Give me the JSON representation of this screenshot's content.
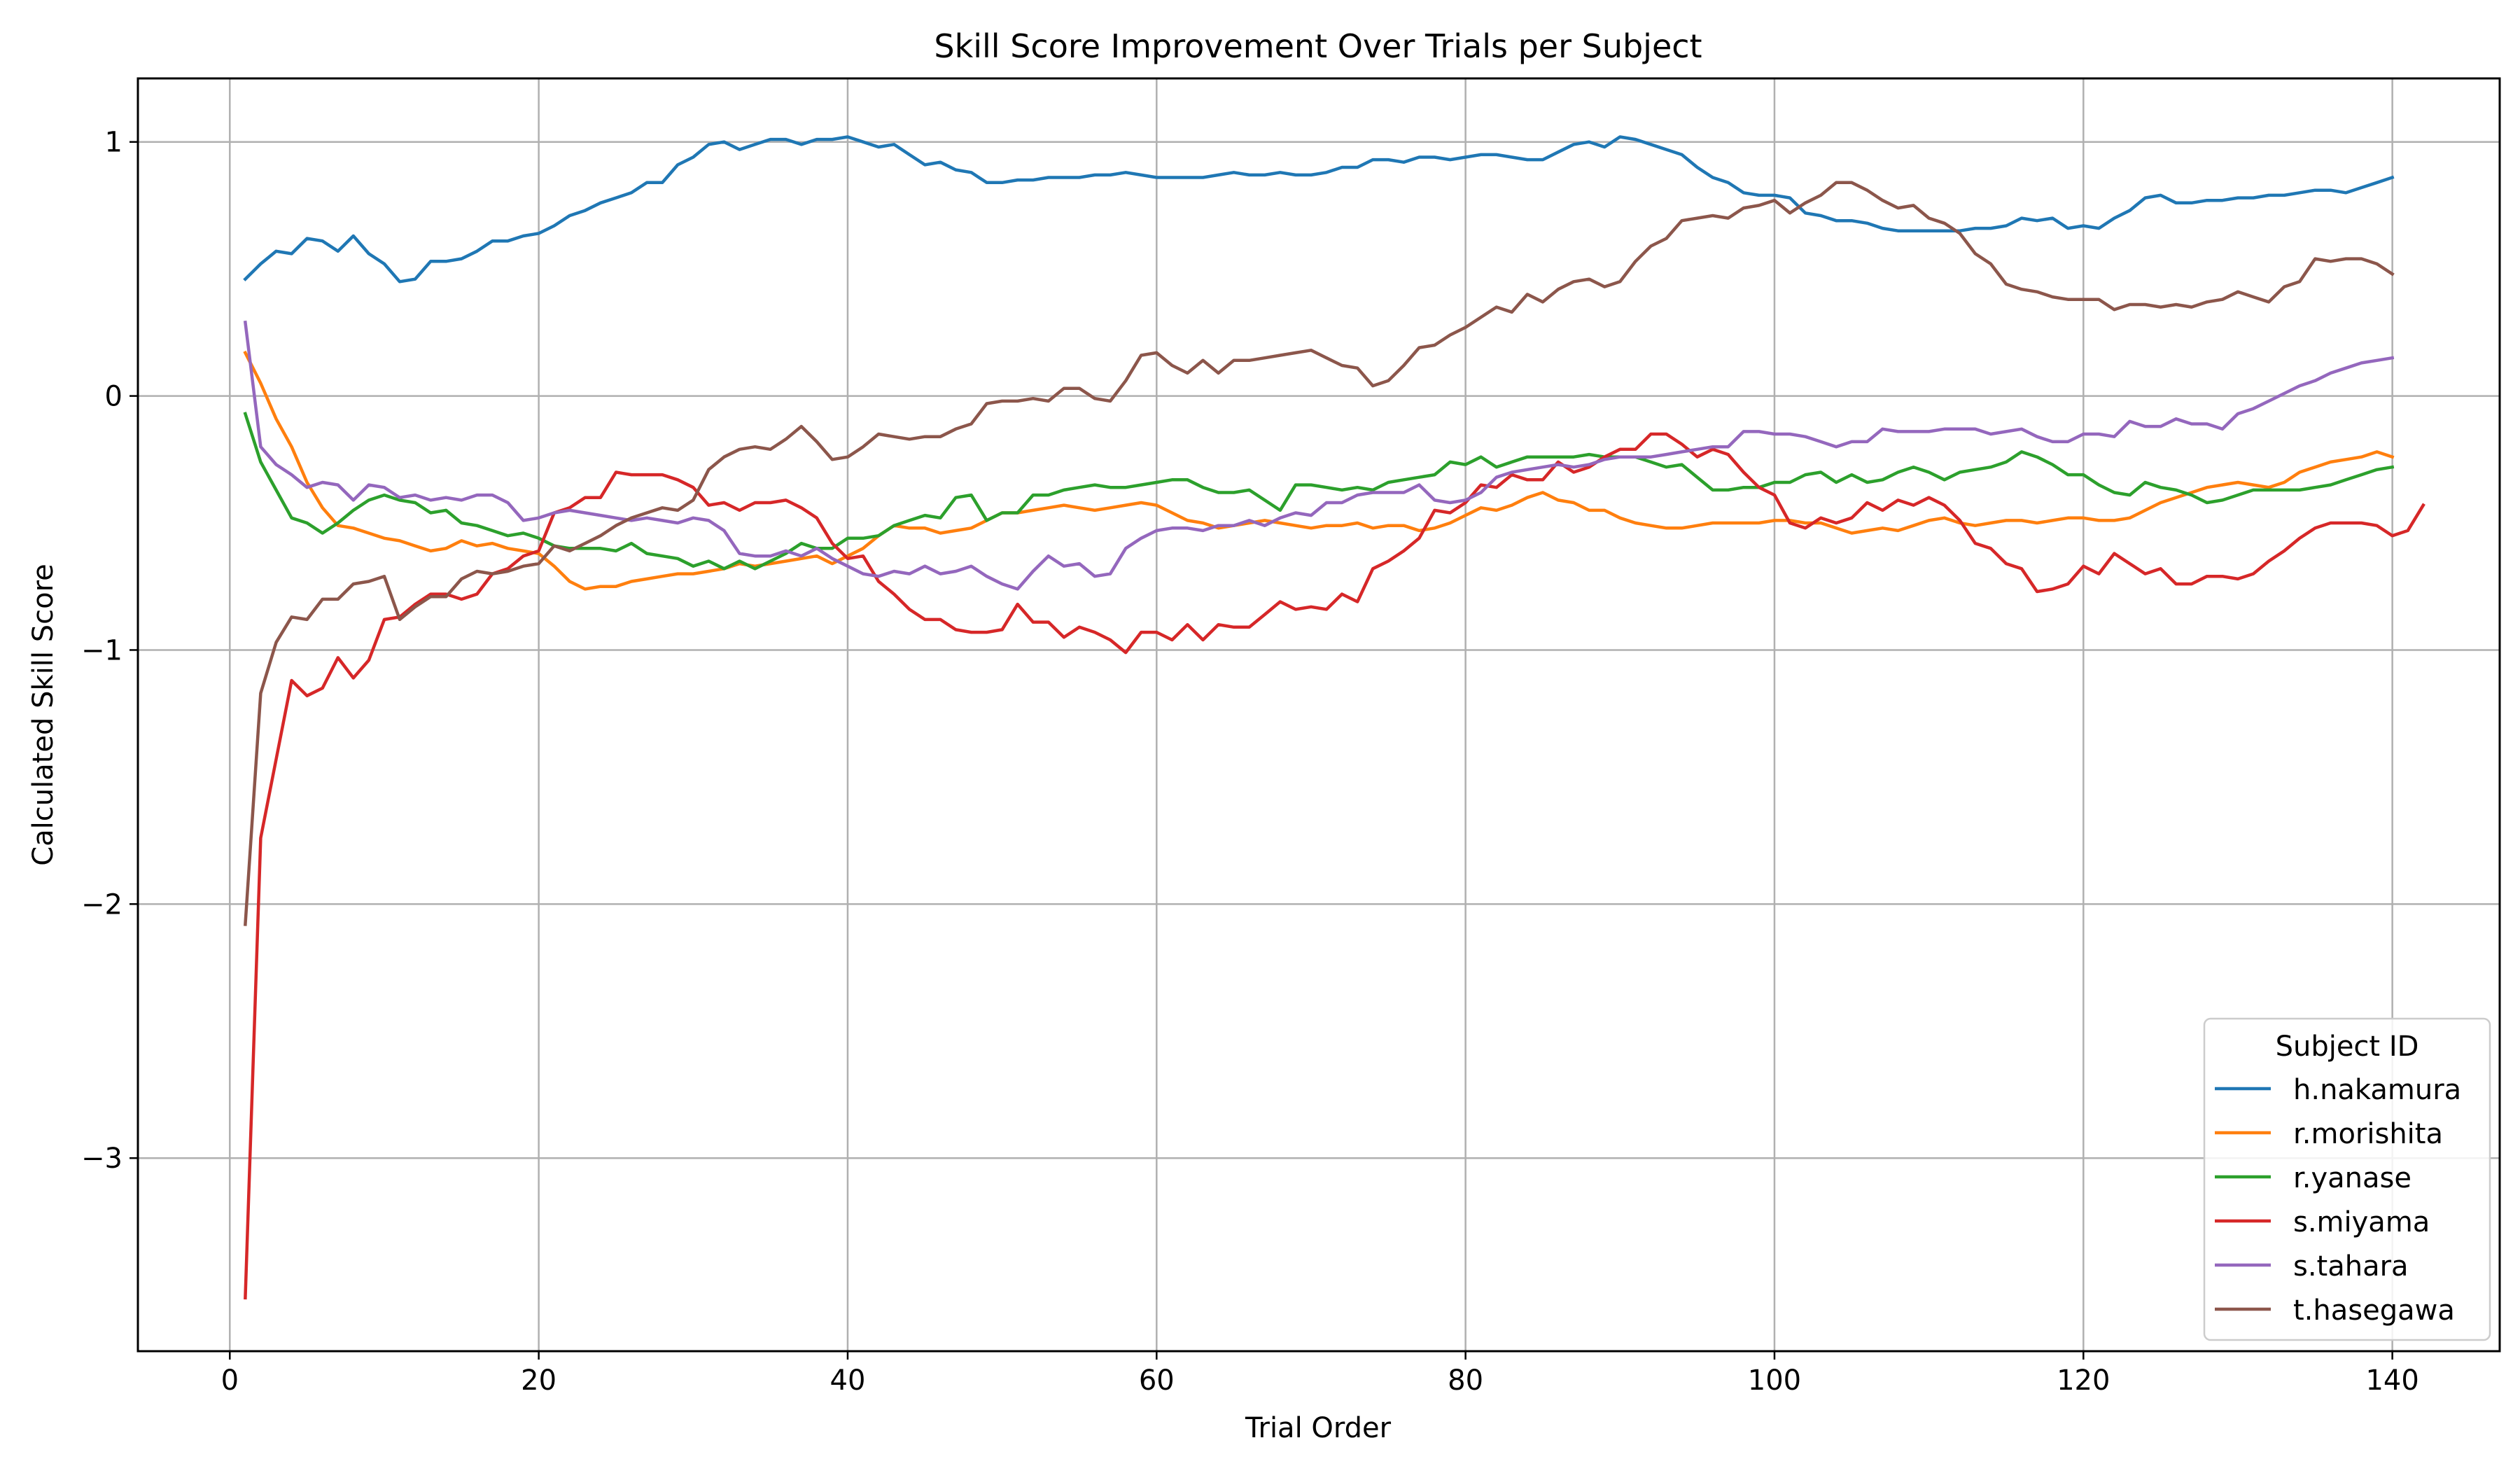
{
  "chart_data": {
    "type": "line",
    "title": "Skill Score Improvement Over Trials per Subject",
    "xlabel": "Trial Order",
    "ylabel": "Calculated Skill Score",
    "xlim": [
      -5.95,
      146.95
    ],
    "ylim": [
      -3.76,
      1.25
    ],
    "x_ticks": [
      0,
      20,
      40,
      60,
      80,
      100,
      120,
      140
    ],
    "y_ticks": [
      1,
      0,
      -1,
      -2,
      -3
    ],
    "y_tick_labels": [
      "1",
      "0",
      "−1",
      "−2",
      "−3"
    ],
    "grid": true,
    "legend": {
      "title": "Subject ID",
      "placement": "lower-right"
    },
    "x_start": 1,
    "series": [
      {
        "name": "h.nakamura",
        "color": "#1f77b4",
        "values": [
          0.46,
          0.52,
          0.57,
          0.56,
          0.62,
          0.61,
          0.57,
          0.63,
          0.56,
          0.52,
          0.45,
          0.46,
          0.53,
          0.53,
          0.54,
          0.57,
          0.61,
          0.61,
          0.63,
          0.64,
          0.67,
          0.71,
          0.73,
          0.76,
          0.78,
          0.8,
          0.84,
          0.84,
          0.91,
          0.94,
          0.99,
          1.0,
          0.97,
          0.99,
          1.01,
          1.01,
          0.99,
          1.01,
          1.01,
          1.02,
          1.0,
          0.98,
          0.99,
          0.95,
          0.91,
          0.92,
          0.89,
          0.88,
          0.84,
          0.84,
          0.85,
          0.85,
          0.86,
          0.86,
          0.86,
          0.87,
          0.87,
          0.88,
          0.87,
          0.86,
          0.86,
          0.86,
          0.86,
          0.87,
          0.88,
          0.87,
          0.87,
          0.88,
          0.87,
          0.87,
          0.88,
          0.9,
          0.9,
          0.93,
          0.93,
          0.92,
          0.94,
          0.94,
          0.93,
          0.94,
          0.95,
          0.95,
          0.94,
          0.93,
          0.93,
          0.96,
          0.99,
          1.0,
          0.98,
          1.02,
          1.01,
          0.99,
          0.97,
          0.95,
          0.9,
          0.86,
          0.84,
          0.8,
          0.79,
          0.79,
          0.78,
          0.72,
          0.71,
          0.69,
          0.69,
          0.68,
          0.66,
          0.65,
          0.65,
          0.65,
          0.65,
          0.65,
          0.66,
          0.66,
          0.67,
          0.7,
          0.69,
          0.7,
          0.66,
          0.67,
          0.66,
          0.7,
          0.73,
          0.78,
          0.79,
          0.76,
          0.76,
          0.77,
          0.77,
          0.78,
          0.78,
          0.79,
          0.79,
          0.8,
          0.81,
          0.81,
          0.8,
          0.82,
          0.84,
          0.86
        ]
      },
      {
        "name": "r.morishita",
        "color": "#ff7f0e",
        "values": [
          0.17,
          0.05,
          -0.09,
          -0.2,
          -0.34,
          -0.44,
          -0.51,
          -0.52,
          -0.54,
          -0.56,
          -0.57,
          -0.59,
          -0.61,
          -0.6,
          -0.57,
          -0.59,
          -0.58,
          -0.6,
          -0.61,
          -0.62,
          -0.67,
          -0.73,
          -0.76,
          -0.75,
          -0.75,
          -0.73,
          -0.72,
          -0.71,
          -0.7,
          -0.7,
          -0.69,
          -0.68,
          -0.66,
          -0.67,
          -0.66,
          -0.65,
          -0.64,
          -0.63,
          -0.66,
          -0.63,
          -0.6,
          -0.55,
          -0.51,
          -0.52,
          -0.52,
          -0.54,
          -0.53,
          -0.52,
          -0.49,
          -0.46,
          -0.46,
          -0.45,
          -0.44,
          -0.43,
          -0.44,
          -0.45,
          -0.44,
          -0.43,
          -0.42,
          -0.43,
          -0.46,
          -0.49,
          -0.5,
          -0.52,
          -0.51,
          -0.5,
          -0.49,
          -0.5,
          -0.51,
          -0.52,
          -0.51,
          -0.51,
          -0.5,
          -0.52,
          -0.51,
          -0.51,
          -0.53,
          -0.52,
          -0.5,
          -0.47,
          -0.44,
          -0.45,
          -0.43,
          -0.4,
          -0.38,
          -0.41,
          -0.42,
          -0.45,
          -0.45,
          -0.48,
          -0.5,
          -0.51,
          -0.52,
          -0.52,
          -0.51,
          -0.5,
          -0.5,
          -0.5,
          -0.5,
          -0.49,
          -0.49,
          -0.5,
          -0.5,
          -0.52,
          -0.54,
          -0.53,
          -0.52,
          -0.53,
          -0.51,
          -0.49,
          -0.48,
          -0.5,
          -0.51,
          -0.5,
          -0.49,
          -0.49,
          -0.5,
          -0.49,
          -0.48,
          -0.48,
          -0.49,
          -0.49,
          -0.48,
          -0.45,
          -0.42,
          -0.4,
          -0.38,
          -0.36,
          -0.35,
          -0.34,
          -0.35,
          -0.36,
          -0.34,
          -0.3,
          -0.28,
          -0.26,
          -0.25,
          -0.24,
          -0.22,
          -0.24
        ]
      },
      {
        "name": "r.yanase",
        "color": "#2ca02c",
        "values": [
          -0.07,
          -0.26,
          -0.37,
          -0.48,
          -0.5,
          -0.54,
          -0.5,
          -0.45,
          -0.41,
          -0.39,
          -0.41,
          -0.42,
          -0.46,
          -0.45,
          -0.5,
          -0.51,
          -0.53,
          -0.55,
          -0.54,
          -0.56,
          -0.59,
          -0.6,
          -0.6,
          -0.6,
          -0.61,
          -0.58,
          -0.62,
          -0.63,
          -0.64,
          -0.67,
          -0.65,
          -0.68,
          -0.65,
          -0.68,
          -0.65,
          -0.62,
          -0.58,
          -0.6,
          -0.6,
          -0.56,
          -0.56,
          -0.55,
          -0.51,
          -0.49,
          -0.47,
          -0.48,
          -0.4,
          -0.39,
          -0.49,
          -0.46,
          -0.46,
          -0.39,
          -0.39,
          -0.37,
          -0.36,
          -0.35,
          -0.36,
          -0.36,
          -0.35,
          -0.34,
          -0.33,
          -0.33,
          -0.36,
          -0.38,
          -0.38,
          -0.37,
          -0.41,
          -0.45,
          -0.35,
          -0.35,
          -0.36,
          -0.37,
          -0.36,
          -0.37,
          -0.34,
          -0.33,
          -0.32,
          -0.31,
          -0.26,
          -0.27,
          -0.24,
          -0.28,
          -0.26,
          -0.24,
          -0.24,
          -0.24,
          -0.24,
          -0.23,
          -0.24,
          -0.24,
          -0.24,
          -0.26,
          -0.28,
          -0.27,
          -0.32,
          -0.37,
          -0.37,
          -0.36,
          -0.36,
          -0.34,
          -0.34,
          -0.31,
          -0.3,
          -0.34,
          -0.31,
          -0.34,
          -0.33,
          -0.3,
          -0.28,
          -0.3,
          -0.33,
          -0.3,
          -0.29,
          -0.28,
          -0.26,
          -0.22,
          -0.24,
          -0.27,
          -0.31,
          -0.31,
          -0.35,
          -0.38,
          -0.39,
          -0.34,
          -0.36,
          -0.37,
          -0.39,
          -0.42,
          -0.41,
          -0.39,
          -0.37,
          -0.37,
          -0.37,
          -0.37,
          -0.36,
          -0.35,
          -0.33,
          -0.31,
          -0.29,
          -0.28
        ]
      },
      {
        "name": "s.miyama",
        "color": "#d62728",
        "values": [
          -3.55,
          -1.74,
          -1.43,
          -1.12,
          -1.18,
          -1.15,
          -1.03,
          -1.11,
          -1.04,
          -0.88,
          -0.87,
          -0.82,
          -0.78,
          -0.78,
          -0.8,
          -0.78,
          -0.7,
          -0.68,
          -0.63,
          -0.61,
          -0.46,
          -0.44,
          -0.4,
          -0.4,
          -0.3,
          -0.31,
          -0.31,
          -0.31,
          -0.33,
          -0.36,
          -0.43,
          -0.42,
          -0.45,
          -0.42,
          -0.42,
          -0.41,
          -0.44,
          -0.48,
          -0.58,
          -0.64,
          -0.63,
          -0.73,
          -0.78,
          -0.84,
          -0.88,
          -0.88,
          -0.92,
          -0.93,
          -0.93,
          -0.92,
          -0.82,
          -0.89,
          -0.89,
          -0.95,
          -0.91,
          -0.93,
          -0.96,
          -1.01,
          -0.93,
          -0.93,
          -0.96,
          -0.9,
          -0.96,
          -0.9,
          -0.91,
          -0.91,
          -0.86,
          -0.81,
          -0.84,
          -0.83,
          -0.84,
          -0.78,
          -0.81,
          -0.68,
          -0.65,
          -0.61,
          -0.56,
          -0.45,
          -0.46,
          -0.42,
          -0.35,
          -0.36,
          -0.31,
          -0.33,
          -0.33,
          -0.26,
          -0.3,
          -0.28,
          -0.24,
          -0.21,
          -0.21,
          -0.15,
          -0.15,
          -0.19,
          -0.24,
          -0.21,
          -0.23,
          -0.3,
          -0.36,
          -0.39,
          -0.5,
          -0.52,
          -0.48,
          -0.5,
          -0.48,
          -0.42,
          -0.45,
          -0.41,
          -0.43,
          -0.4,
          -0.43,
          -0.49,
          -0.58,
          -0.6,
          -0.66,
          -0.68,
          -0.77,
          -0.76,
          -0.74,
          -0.67,
          -0.7,
          -0.62,
          -0.66,
          -0.7,
          -0.68,
          -0.74,
          -0.74,
          -0.71,
          -0.71,
          -0.72,
          -0.7,
          -0.65,
          -0.61,
          -0.56,
          -0.52,
          -0.5,
          -0.5,
          -0.5,
          -0.51,
          -0.55,
          -0.53,
          -0.43
        ]
      },
      {
        "name": "s.tahara",
        "color": "#9467bd",
        "values": [
          0.29,
          -0.2,
          -0.27,
          -0.31,
          -0.36,
          -0.34,
          -0.35,
          -0.41,
          -0.35,
          -0.36,
          -0.4,
          -0.39,
          -0.41,
          -0.4,
          -0.41,
          -0.39,
          -0.39,
          -0.42,
          -0.49,
          -0.48,
          -0.46,
          -0.45,
          -0.46,
          -0.47,
          -0.48,
          -0.49,
          -0.48,
          -0.49,
          -0.5,
          -0.48,
          -0.49,
          -0.53,
          -0.62,
          -0.63,
          -0.63,
          -0.61,
          -0.63,
          -0.6,
          -0.64,
          -0.67,
          -0.7,
          -0.71,
          -0.69,
          -0.7,
          -0.67,
          -0.7,
          -0.69,
          -0.67,
          -0.71,
          -0.74,
          -0.76,
          -0.69,
          -0.63,
          -0.67,
          -0.66,
          -0.71,
          -0.7,
          -0.6,
          -0.56,
          -0.53,
          -0.52,
          -0.52,
          -0.53,
          -0.51,
          -0.51,
          -0.49,
          -0.51,
          -0.48,
          -0.46,
          -0.47,
          -0.42,
          -0.42,
          -0.39,
          -0.38,
          -0.38,
          -0.38,
          -0.35,
          -0.41,
          -0.42,
          -0.41,
          -0.38,
          -0.32,
          -0.3,
          -0.29,
          -0.28,
          -0.27,
          -0.28,
          -0.27,
          -0.25,
          -0.24,
          -0.24,
          -0.24,
          -0.23,
          -0.22,
          -0.21,
          -0.2,
          -0.2,
          -0.14,
          -0.14,
          -0.15,
          -0.15,
          -0.16,
          -0.18,
          -0.2,
          -0.18,
          -0.18,
          -0.13,
          -0.14,
          -0.14,
          -0.14,
          -0.13,
          -0.13,
          -0.13,
          -0.15,
          -0.14,
          -0.13,
          -0.16,
          -0.18,
          -0.18,
          -0.15,
          -0.15,
          -0.16,
          -0.1,
          -0.12,
          -0.12,
          -0.09,
          -0.11,
          -0.11,
          -0.13,
          -0.07,
          -0.05,
          -0.02,
          0.01,
          0.04,
          0.06,
          0.09,
          0.11,
          0.13,
          0.14,
          0.15
        ]
      },
      {
        "name": "t.hasegawa",
        "color": "#8c564b",
        "values": [
          -2.08,
          -1.17,
          -0.97,
          -0.87,
          -0.88,
          -0.8,
          -0.8,
          -0.74,
          -0.73,
          -0.71,
          -0.88,
          -0.83,
          -0.79,
          -0.79,
          -0.72,
          -0.69,
          -0.7,
          -0.69,
          -0.67,
          -0.66,
          -0.59,
          -0.61,
          -0.58,
          -0.55,
          -0.51,
          -0.48,
          -0.46,
          -0.44,
          -0.45,
          -0.41,
          -0.29,
          -0.24,
          -0.21,
          -0.2,
          -0.21,
          -0.17,
          -0.12,
          -0.18,
          -0.25,
          -0.24,
          -0.2,
          -0.15,
          -0.16,
          -0.17,
          -0.16,
          -0.16,
          -0.13,
          -0.11,
          -0.03,
          -0.02,
          -0.02,
          -0.01,
          -0.02,
          0.03,
          0.03,
          -0.01,
          -0.02,
          0.06,
          0.16,
          0.17,
          0.12,
          0.09,
          0.14,
          0.09,
          0.14,
          0.14,
          0.15,
          0.16,
          0.17,
          0.18,
          0.15,
          0.12,
          0.11,
          0.04,
          0.06,
          0.12,
          0.19,
          0.2,
          0.24,
          0.27,
          0.31,
          0.35,
          0.33,
          0.4,
          0.37,
          0.42,
          0.45,
          0.46,
          0.43,
          0.45,
          0.53,
          0.59,
          0.62,
          0.69,
          0.7,
          0.71,
          0.7,
          0.74,
          0.75,
          0.77,
          0.72,
          0.76,
          0.79,
          0.84,
          0.84,
          0.81,
          0.77,
          0.74,
          0.75,
          0.7,
          0.68,
          0.64,
          0.56,
          0.52,
          0.44,
          0.42,
          0.41,
          0.39,
          0.38,
          0.38,
          0.38,
          0.34,
          0.36,
          0.36,
          0.35,
          0.36,
          0.35,
          0.37,
          0.38,
          0.41,
          0.39,
          0.37,
          0.43,
          0.45,
          0.54,
          0.53,
          0.54,
          0.54,
          0.52,
          0.48
        ]
      }
    ]
  }
}
